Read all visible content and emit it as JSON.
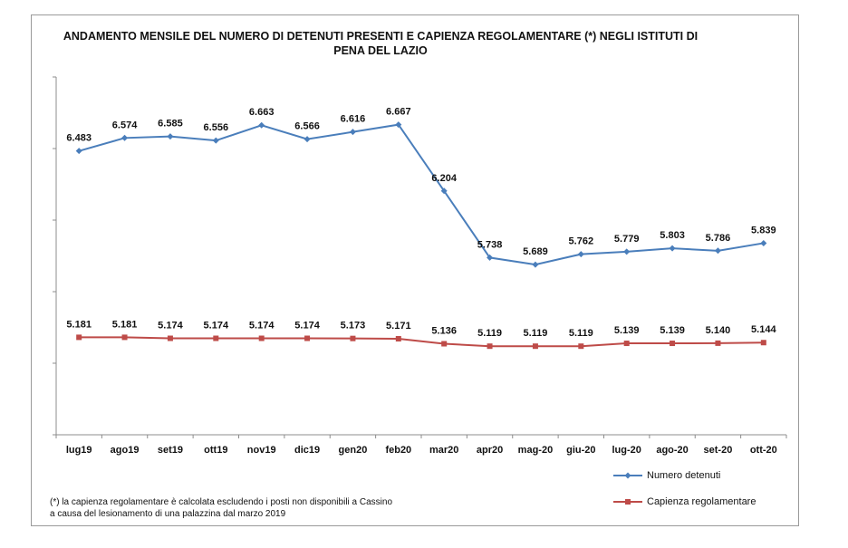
{
  "chart_data": {
    "type": "line",
    "title": "ANDAMENTO MENSILE  DEL NUMERO DI DETENUTI PRESENTI E CAPIENZA REGOLAMENTARE (*) NEGLI ISTITUTI DI PENA DEL LAZIO",
    "categories": [
      "lug19",
      "ago19",
      "set19",
      "ott19",
      "nov19",
      "dic19",
      "gen20",
      "feb20",
      "mar20",
      "apr20",
      "mag-20",
      "giu-20",
      "lug-20",
      "ago-20",
      "set-20",
      "ott-20"
    ],
    "ylim": [
      4500,
      7000
    ],
    "grid": false,
    "legend_position": "bottom-right",
    "series": [
      {
        "name": "Numero detenuti",
        "color": "#4a7ebb",
        "marker": "diamond",
        "values": [
          6483,
          6574,
          6585,
          6556,
          6663,
          6566,
          6616,
          6667,
          6204,
          5738,
          5689,
          5762,
          5779,
          5803,
          5786,
          5839
        ],
        "labels": [
          "6.483",
          "6.574",
          "6.585",
          "6.556",
          "6.663",
          "6.566",
          "6.616",
          "6.667",
          "6.204",
          "5.738",
          "5.689",
          "5.762",
          "5.779",
          "5.803",
          "5.786",
          "5.839"
        ]
      },
      {
        "name": "Capienza regolamentare",
        "color": "#be4b48",
        "marker": "square",
        "values": [
          5181,
          5181,
          5174,
          5174,
          5174,
          5174,
          5173,
          5171,
          5136,
          5119,
          5119,
          5119,
          5139,
          5139,
          5140,
          5144
        ],
        "labels": [
          "5.181",
          "5.181",
          "5.174",
          "5.174",
          "5.174",
          "5.174",
          "5.173",
          "5.171",
          "5.136",
          "5.119",
          "5.119",
          "5.119",
          "5.139",
          "5.139",
          "5.140",
          "5.144"
        ]
      }
    ],
    "footnote_line1": "(*) la capienza regolamentare è calcolata escludendo i posti non disponibili a Cassino",
    "footnote_line2": "a causa del lesionamento di una palazzina dal marzo 2019"
  }
}
